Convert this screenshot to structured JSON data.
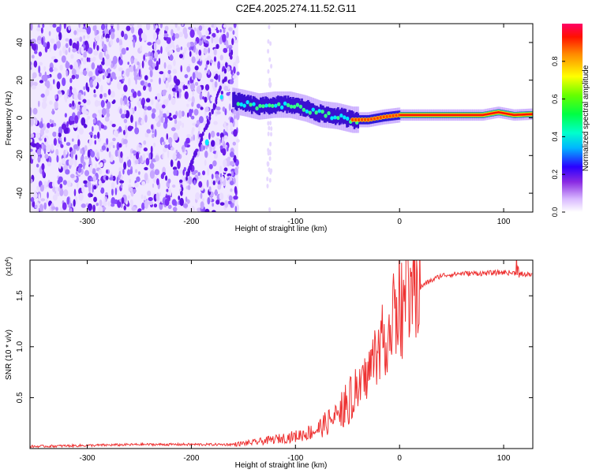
{
  "title": "C2E4.2025.274.11.52.G11",
  "chart_data": [
    {
      "type": "heatmap",
      "name": "spectrogram",
      "xlabel": "Height of straight line (km)",
      "ylabel": "Frequency (Hz)",
      "xlim": [
        -355,
        128
      ],
      "ylim": [
        -50,
        50
      ],
      "x_ticks": [
        -300,
        -200,
        -100,
        0,
        100
      ],
      "y_ticks": [
        -40,
        -20,
        0,
        20,
        40
      ],
      "colorbar": {
        "label": "Normalized spectral amplitude",
        "range": [
          0,
          1
        ],
        "ticks": [
          0.0,
          0.2,
          0.4,
          0.6,
          0.8
        ]
      },
      "noise_region_x": [
        -355,
        -155
      ],
      "ridge": [
        {
          "x": -185,
          "y": -13
        },
        {
          "x": -170,
          "y": 10
        },
        {
          "x": -150,
          "y": 8
        },
        {
          "x": -135,
          "y": 6
        },
        {
          "x": -120,
          "y": 7
        },
        {
          "x": -105,
          "y": 7
        },
        {
          "x": -90,
          "y": 5
        },
        {
          "x": -75,
          "y": 2
        },
        {
          "x": -60,
          "y": 1
        },
        {
          "x": -45,
          "y": -1
        },
        {
          "x": -30,
          "y": -1
        },
        {
          "x": -15,
          "y": 0.5
        },
        {
          "x": 0,
          "y": 1.5
        },
        {
          "x": 30,
          "y": 1.5
        },
        {
          "x": 60,
          "y": 1.5
        },
        {
          "x": 80,
          "y": 1.5
        },
        {
          "x": 95,
          "y": 3
        },
        {
          "x": 110,
          "y": 1.5
        },
        {
          "x": 128,
          "y": 2
        }
      ]
    },
    {
      "type": "line",
      "name": "snr",
      "xlabel": "Height of straight line (km)",
      "ylabel": "SNR (10 * v/v)",
      "y_multiplier": "(x10^4)",
      "xlim": [
        -355,
        128
      ],
      "ylim": [
        0,
        1.85
      ],
      "x_ticks": [
        -300,
        -200,
        -100,
        0,
        100
      ],
      "y_ticks": [
        0.5,
        1.0,
        1.5
      ],
      "y_tick_labels": [
        "0.5",
        "1.0",
        "1.5"
      ],
      "color": "#ee3333",
      "trend": [
        {
          "x": -355,
          "y": 0.02
        },
        {
          "x": -250,
          "y": 0.04
        },
        {
          "x": -200,
          "y": 0.04
        },
        {
          "x": -160,
          "y": 0.04
        },
        {
          "x": -140,
          "y": 0.06
        },
        {
          "x": -120,
          "y": 0.09
        },
        {
          "x": -100,
          "y": 0.12
        },
        {
          "x": -80,
          "y": 0.18
        },
        {
          "x": -60,
          "y": 0.32
        },
        {
          "x": -50,
          "y": 0.45
        },
        {
          "x": -40,
          "y": 0.55
        },
        {
          "x": -30,
          "y": 0.75
        },
        {
          "x": -20,
          "y": 1.0
        },
        {
          "x": -10,
          "y": 1.15
        },
        {
          "x": 0,
          "y": 1.3
        },
        {
          "x": 10,
          "y": 1.5
        },
        {
          "x": 25,
          "y": 1.62
        },
        {
          "x": 40,
          "y": 1.7
        },
        {
          "x": 60,
          "y": 1.72
        },
        {
          "x": 80,
          "y": 1.72
        },
        {
          "x": 100,
          "y": 1.73
        },
        {
          "x": 115,
          "y": 1.72
        },
        {
          "x": 128,
          "y": 1.7
        }
      ]
    }
  ]
}
